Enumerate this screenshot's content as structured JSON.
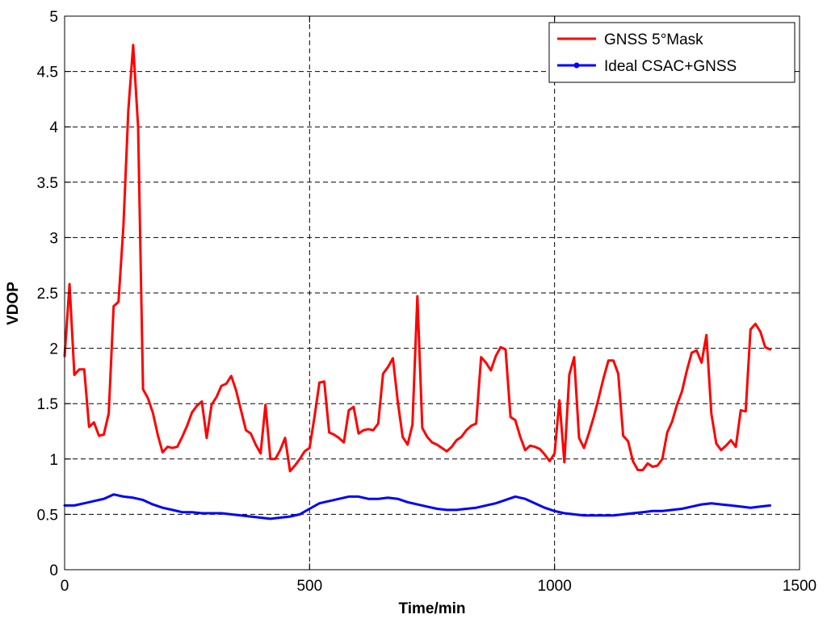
{
  "chart_data": {
    "type": "line",
    "title": "",
    "xlabel": "Time/min",
    "ylabel": "VDOP",
    "xlim": [
      0,
      1500
    ],
    "ylim": [
      0,
      5
    ],
    "xticks": [
      0,
      500,
      1000,
      1500
    ],
    "xtick_labels": [
      "0",
      "500",
      "1000",
      "1500"
    ],
    "yticks": [
      0,
      0.5,
      1,
      1.5,
      2,
      2.5,
      3,
      3.5,
      4,
      4.5,
      5
    ],
    "ytick_labels": [
      "0",
      "0.5",
      "1",
      "1.5",
      "2",
      "2.5",
      "3",
      "3.5",
      "4",
      "4.5",
      "5"
    ],
    "grid": true,
    "legend_position": "top-right",
    "series": [
      {
        "name": "GNSS 5°Mask",
        "color": "#ff0000",
        "marker": "none",
        "x": [
          0,
          10,
          20,
          30,
          40,
          50,
          60,
          70,
          80,
          90,
          100,
          110,
          120,
          130,
          140,
          150,
          160,
          170,
          180,
          190,
          200,
          210,
          220,
          230,
          240,
          250,
          260,
          270,
          280,
          290,
          300,
          310,
          320,
          330,
          340,
          350,
          360,
          370,
          380,
          390,
          400,
          410,
          420,
          430,
          440,
          450,
          460,
          470,
          480,
          490,
          500,
          510,
          520,
          530,
          540,
          550,
          560,
          570,
          580,
          590,
          600,
          610,
          620,
          630,
          640,
          650,
          660,
          670,
          680,
          690,
          700,
          710,
          720,
          730,
          740,
          750,
          760,
          770,
          780,
          790,
          800,
          810,
          820,
          830,
          840,
          850,
          860,
          870,
          880,
          890,
          900,
          910,
          920,
          930,
          940,
          950,
          960,
          970,
          980,
          990,
          1000,
          1010,
          1020,
          1030,
          1040,
          1050,
          1060,
          1070,
          1080,
          1090,
          1100,
          1110,
          1120,
          1130,
          1140,
          1150,
          1160,
          1170,
          1180,
          1190,
          1200,
          1210,
          1220,
          1230,
          1240,
          1250,
          1260,
          1270,
          1280,
          1290,
          1300,
          1310,
          1320,
          1330,
          1340,
          1350,
          1360,
          1370,
          1380,
          1390,
          1400,
          1410,
          1420,
          1430,
          1440
        ],
        "values": [
          1.93,
          2.58,
          1.76,
          1.81,
          1.81,
          1.29,
          1.33,
          1.21,
          1.22,
          1.41,
          2.38,
          2.42,
          3.1,
          4.15,
          4.74,
          4.0,
          1.63,
          1.55,
          1.42,
          1.22,
          1.06,
          1.11,
          1.1,
          1.11,
          1.2,
          1.3,
          1.42,
          1.48,
          1.52,
          1.19,
          1.49,
          1.56,
          1.66,
          1.68,
          1.75,
          1.62,
          1.44,
          1.26,
          1.23,
          1.13,
          1.05,
          1.49,
          1.0,
          1.0,
          1.08,
          1.19,
          0.89,
          0.94,
          1.0,
          1.07,
          1.1,
          1.38,
          1.69,
          1.7,
          1.24,
          1.22,
          1.19,
          1.15,
          1.44,
          1.47,
          1.23,
          1.26,
          1.27,
          1.26,
          1.32,
          1.77,
          1.83,
          1.91,
          1.52,
          1.2,
          1.13,
          1.31,
          2.47,
          1.28,
          1.2,
          1.15,
          1.13,
          1.1,
          1.07,
          1.11,
          1.17,
          1.2,
          1.26,
          1.3,
          1.32,
          1.92,
          1.87,
          1.8,
          1.93,
          2.01,
          1.99,
          1.38,
          1.35,
          1.2,
          1.08,
          1.12,
          1.11,
          1.09,
          1.04,
          0.98,
          1.05,
          1.53,
          0.97,
          1.76,
          1.92,
          1.19,
          1.1,
          1.23,
          1.38,
          1.55,
          1.73,
          1.89,
          1.89,
          1.77,
          1.21,
          1.16,
          0.98,
          0.9,
          0.9,
          0.96,
          0.93,
          0.94,
          1.0,
          1.24,
          1.34,
          1.49,
          1.61,
          1.8,
          1.96,
          1.98,
          1.87,
          2.12,
          1.41,
          1.14,
          1.08,
          1.12,
          1.17,
          1.11,
          1.44,
          1.43,
          2.17,
          2.22,
          2.15,
          2.01,
          1.99
        ]
      },
      {
        "name": "Ideal CSAC+GNSS",
        "color": "#0000ff",
        "marker": "dot",
        "x": [
          0,
          20,
          40,
          60,
          80,
          100,
          120,
          140,
          160,
          180,
          200,
          220,
          240,
          260,
          280,
          300,
          320,
          340,
          360,
          380,
          400,
          420,
          440,
          460,
          480,
          500,
          520,
          540,
          560,
          580,
          600,
          620,
          640,
          660,
          680,
          700,
          720,
          740,
          760,
          780,
          800,
          820,
          840,
          860,
          880,
          900,
          920,
          940,
          960,
          980,
          1000,
          1020,
          1040,
          1060,
          1080,
          1100,
          1120,
          1140,
          1160,
          1180,
          1200,
          1220,
          1240,
          1260,
          1280,
          1300,
          1320,
          1340,
          1360,
          1380,
          1400,
          1420,
          1440
        ],
        "values": [
          0.58,
          0.58,
          0.6,
          0.62,
          0.64,
          0.68,
          0.66,
          0.65,
          0.63,
          0.59,
          0.56,
          0.54,
          0.52,
          0.52,
          0.51,
          0.51,
          0.51,
          0.5,
          0.49,
          0.48,
          0.47,
          0.46,
          0.47,
          0.48,
          0.5,
          0.55,
          0.6,
          0.62,
          0.64,
          0.66,
          0.66,
          0.64,
          0.64,
          0.65,
          0.64,
          0.61,
          0.59,
          0.57,
          0.55,
          0.54,
          0.54,
          0.55,
          0.56,
          0.58,
          0.6,
          0.63,
          0.66,
          0.64,
          0.6,
          0.56,
          0.53,
          0.51,
          0.5,
          0.49,
          0.49,
          0.49,
          0.49,
          0.5,
          0.51,
          0.52,
          0.53,
          0.53,
          0.54,
          0.55,
          0.57,
          0.59,
          0.6,
          0.59,
          0.58,
          0.57,
          0.56,
          0.57,
          0.58
        ]
      }
    ]
  }
}
